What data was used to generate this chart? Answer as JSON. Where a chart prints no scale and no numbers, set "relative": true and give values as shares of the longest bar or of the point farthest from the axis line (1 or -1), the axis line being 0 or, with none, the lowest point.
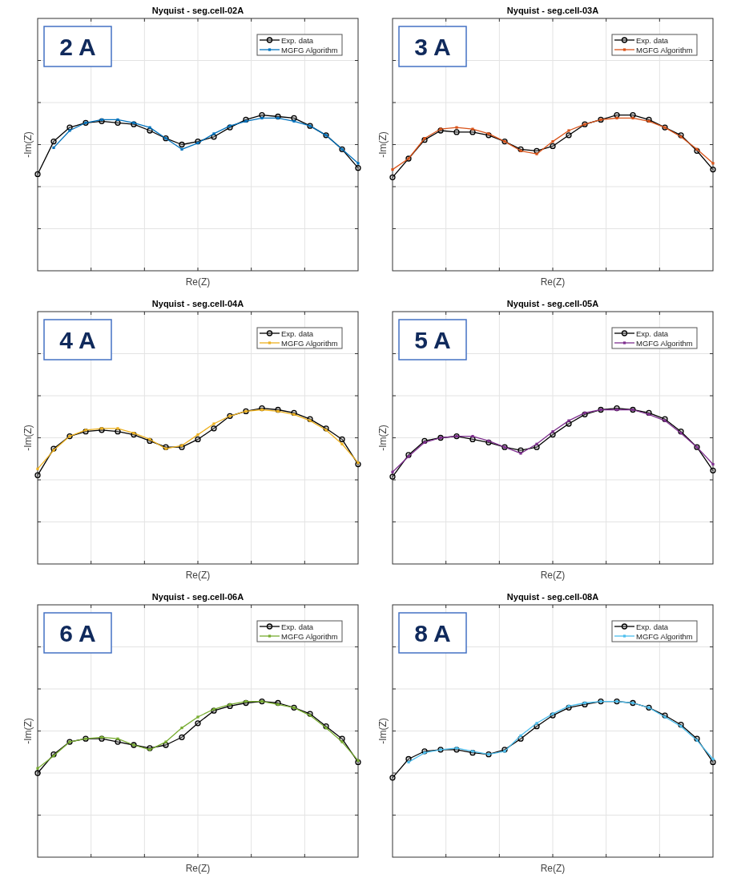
{
  "chart_data": [
    {
      "type": "line",
      "title": "Nyquist - seg.cell-02A",
      "xlabel": "Re(Z)",
      "ylabel": "-Im(Z)",
      "annotations": [
        "2 A"
      ],
      "relative": true,
      "grid": true,
      "legend": "top right",
      "categories": [
        null,
        null,
        null,
        null,
        null,
        null,
        null,
        null,
        null,
        null,
        null,
        null,
        null,
        null,
        null,
        null,
        null,
        null,
        null,
        null,
        null
      ],
      "series": [
        {
          "name": "Exp. data",
          "color": "#000000",
          "marker": "circle",
          "values": [
            0.62,
            0.83,
            0.92,
            0.95,
            0.96,
            0.95,
            0.94,
            0.9,
            0.85,
            0.81,
            0.83,
            0.86,
            0.92,
            0.97,
            1.0,
            0.99,
            0.98,
            0.93,
            0.87,
            0.78,
            0.66
          ]
        },
        {
          "name": "MGFG Algorithm",
          "color": "#0072bd",
          "marker": "square",
          "values": [
            null,
            0.79,
            0.9,
            0.95,
            0.97,
            0.97,
            0.95,
            0.92,
            0.85,
            0.78,
            0.82,
            0.88,
            0.93,
            0.96,
            0.98,
            0.98,
            0.96,
            0.93,
            0.87,
            0.78,
            0.69
          ]
        }
      ]
    },
    {
      "type": "line",
      "title": "Nyquist - seg.cell-03A",
      "xlabel": "Re(Z)",
      "ylabel": "-Im(Z)",
      "annotations": [
        "3 A"
      ],
      "relative": true,
      "grid": true,
      "legend": "top right",
      "categories": [
        null,
        null,
        null,
        null,
        null,
        null,
        null,
        null,
        null,
        null,
        null,
        null,
        null,
        null,
        null,
        null,
        null,
        null,
        null,
        null,
        null
      ],
      "series": [
        {
          "name": "Exp. data",
          "color": "#000000",
          "marker": "circle",
          "values": [
            0.6,
            0.72,
            0.84,
            0.9,
            0.89,
            0.89,
            0.87,
            0.83,
            0.78,
            0.77,
            0.8,
            0.87,
            0.94,
            0.97,
            1.0,
            1.0,
            0.97,
            0.92,
            0.87,
            0.77,
            0.65
          ]
        },
        {
          "name": "MGFG Algorithm",
          "color": "#d95319",
          "marker": "square",
          "values": [
            0.65,
            0.72,
            0.85,
            0.91,
            0.92,
            0.91,
            0.88,
            0.83,
            0.77,
            0.75,
            0.83,
            0.9,
            0.94,
            0.97,
            0.98,
            0.98,
            0.96,
            0.92,
            0.86,
            0.78,
            0.69
          ]
        }
      ]
    },
    {
      "type": "line",
      "title": "Nyquist - seg.cell-04A",
      "xlabel": "Re(Z)",
      "ylabel": "-Im(Z)",
      "annotations": [
        "4 A"
      ],
      "relative": true,
      "grid": true,
      "legend": "top right",
      "categories": [
        null,
        null,
        null,
        null,
        null,
        null,
        null,
        null,
        null,
        null,
        null,
        null,
        null,
        null,
        null,
        null,
        null,
        null,
        null,
        null,
        null
      ],
      "series": [
        {
          "name": "Exp. data",
          "color": "#000000",
          "marker": "circle",
          "values": [
            0.57,
            0.74,
            0.82,
            0.85,
            0.86,
            0.85,
            0.83,
            0.79,
            0.75,
            0.75,
            0.8,
            0.87,
            0.95,
            0.98,
            1.0,
            0.99,
            0.97,
            0.93,
            0.87,
            0.8,
            0.64
          ]
        },
        {
          "name": "MGFG Algorithm",
          "color": "#edb120",
          "marker": "square",
          "values": [
            0.61,
            0.73,
            0.82,
            0.86,
            0.87,
            0.87,
            0.84,
            0.8,
            0.74,
            0.76,
            0.83,
            0.9,
            0.95,
            0.98,
            0.99,
            0.98,
            0.96,
            0.92,
            0.86,
            0.77,
            0.65
          ]
        }
      ]
    },
    {
      "type": "line",
      "title": "Nyquist - seg.cell-05A",
      "xlabel": "Re(Z)",
      "ylabel": "-Im(Z)",
      "annotations": [
        "5 A"
      ],
      "relative": true,
      "grid": true,
      "legend": "top right",
      "categories": [
        null,
        null,
        null,
        null,
        null,
        null,
        null,
        null,
        null,
        null,
        null,
        null,
        null,
        null,
        null,
        null,
        null,
        null,
        null,
        null,
        null
      ],
      "series": [
        {
          "name": "Exp. data",
          "color": "#000000",
          "marker": "circle",
          "values": [
            0.56,
            0.7,
            0.79,
            0.81,
            0.82,
            0.8,
            0.78,
            0.75,
            0.73,
            0.75,
            0.83,
            0.9,
            0.96,
            0.99,
            1.0,
            0.99,
            0.97,
            0.93,
            0.85,
            0.75,
            0.6
          ]
        },
        {
          "name": "MGFG Algorithm",
          "color": "#7e2f8e",
          "marker": "square",
          "values": [
            0.59,
            0.69,
            0.78,
            0.81,
            0.82,
            0.82,
            0.79,
            0.75,
            0.71,
            0.77,
            0.85,
            0.92,
            0.97,
            0.99,
            0.99,
            0.99,
            0.96,
            0.92,
            0.84,
            0.75,
            0.64
          ]
        }
      ]
    },
    {
      "type": "line",
      "title": "Nyquist - seg.cell-06A",
      "xlabel": "Re(Z)",
      "ylabel": "-Im(Z)",
      "annotations": [
        "6 A"
      ],
      "relative": true,
      "grid": true,
      "legend": "top right",
      "categories": [
        null,
        null,
        null,
        null,
        null,
        null,
        null,
        null,
        null,
        null,
        null,
        null,
        null,
        null,
        null,
        null,
        null,
        null,
        null,
        null,
        null
      ],
      "series": [
        {
          "name": "Exp. data",
          "color": "#000000",
          "marker": "circle",
          "values": [
            0.54,
            0.66,
            0.74,
            0.76,
            0.76,
            0.74,
            0.72,
            0.7,
            0.72,
            0.77,
            0.86,
            0.94,
            0.97,
            0.99,
            1.0,
            0.99,
            0.96,
            0.92,
            0.84,
            0.76,
            0.61
          ]
        },
        {
          "name": "MGFG Algorithm",
          "color": "#77ac30",
          "marker": "square",
          "values": [
            0.57,
            0.65,
            0.74,
            0.76,
            0.77,
            0.76,
            0.72,
            0.69,
            0.74,
            0.83,
            0.9,
            0.95,
            0.98,
            1.0,
            1.0,
            0.98,
            0.96,
            0.91,
            0.83,
            0.74,
            0.62
          ]
        }
      ]
    },
    {
      "type": "line",
      "title": "Nyquist - seg.cell-08A",
      "xlabel": "Re(Z)",
      "ylabel": "-Im(Z)",
      "annotations": [
        "8 A"
      ],
      "relative": true,
      "grid": true,
      "legend": "top right",
      "categories": [
        null,
        null,
        null,
        null,
        null,
        null,
        null,
        null,
        null,
        null,
        null,
        null,
        null,
        null,
        null,
        null,
        null,
        null,
        null,
        null,
        null
      ],
      "series": [
        {
          "name": "Exp. data",
          "color": "#000000",
          "marker": "circle",
          "values": [
            0.51,
            0.63,
            0.68,
            0.69,
            0.69,
            0.67,
            0.66,
            0.69,
            0.76,
            0.84,
            0.91,
            0.96,
            0.98,
            1.0,
            1.0,
            0.99,
            0.96,
            0.91,
            0.85,
            0.76,
            0.61
          ]
        },
        {
          "name": "MGFG Algorithm",
          "color": "#4dbeee",
          "marker": "square",
          "values": [
            null,
            0.61,
            0.67,
            0.69,
            0.7,
            0.68,
            0.66,
            0.68,
            0.78,
            0.86,
            0.92,
            0.97,
            0.99,
            1.0,
            1.0,
            0.99,
            0.96,
            0.9,
            0.84,
            0.75,
            0.63
          ]
        }
      ]
    }
  ]
}
